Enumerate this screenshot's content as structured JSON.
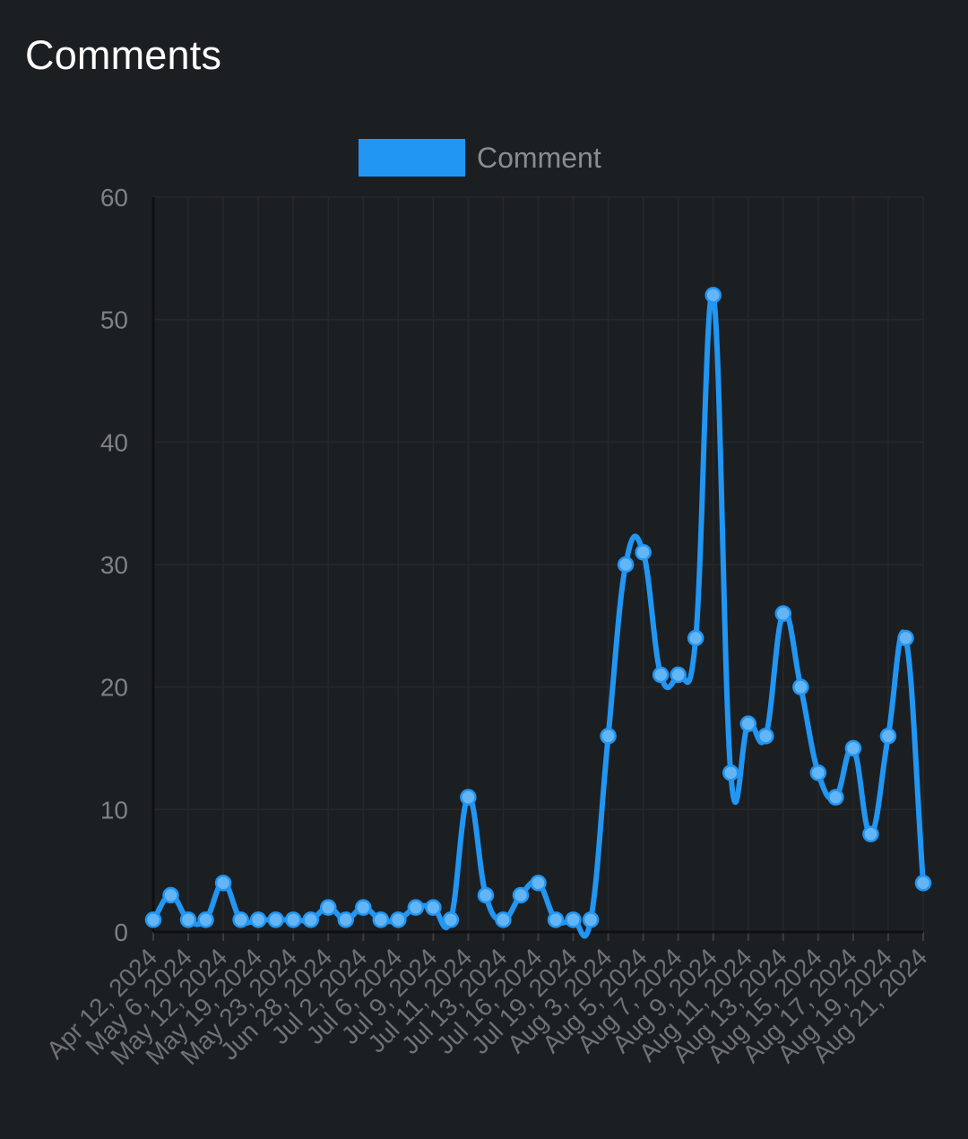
{
  "header": {
    "title": "Comments"
  },
  "colors": {
    "background": "#1c1f22",
    "series": "#2196f3",
    "point": "#64b5f6"
  },
  "chart_data": {
    "type": "line",
    "title": "Comments",
    "xlabel": "",
    "ylabel": "",
    "ylim": [
      0,
      60
    ],
    "yticks": [
      0,
      10,
      20,
      30,
      40,
      50,
      60
    ],
    "grid": true,
    "legend": "top-center",
    "xtick_labels": [
      "Apr 12, 2024",
      "May 6, 2024",
      "May 12, 2024",
      "May 19, 2024",
      "May 23, 2024",
      "Jun 28, 2024",
      "Jul 2, 2024",
      "Jul 6, 2024",
      "Jul 9, 2024",
      "Jul 11, 2024",
      "Jul 13, 2024",
      "Jul 16, 2024",
      "Jul 19, 2024",
      "Aug 3, 2024",
      "Aug 5, 2024",
      "Aug 7, 2024",
      "Aug 9, 2024",
      "Aug 11, 2024",
      "Aug 13, 2024",
      "Aug 15, 2024",
      "Aug 17, 2024",
      "Aug 19, 2024",
      "Aug 21, 2024"
    ],
    "series": [
      {
        "name": "Comment",
        "color": "#2196f3",
        "values": [
          1,
          3,
          1,
          1,
          4,
          1,
          1,
          1,
          1,
          1,
          2,
          1,
          2,
          1,
          1,
          2,
          2,
          1,
          11,
          3,
          1,
          3,
          4,
          1,
          1,
          1,
          16,
          30,
          31,
          21,
          21,
          24,
          52,
          13,
          17,
          16,
          26,
          20,
          13,
          11,
          15,
          8,
          16,
          24,
          4
        ]
      }
    ]
  }
}
